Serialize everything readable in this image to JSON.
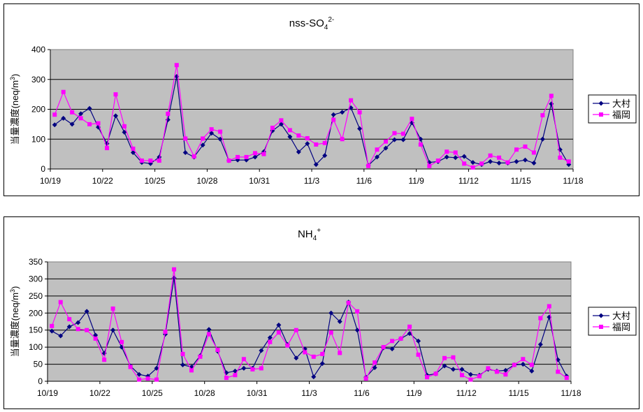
{
  "chart_data": [
    {
      "type": "line",
      "title": "nss-SO",
      "title_sub": "4",
      "title_sup": "2-",
      "ylabel": "当量濃度(neq/m",
      "ylabel_sup": "3",
      "ylabel_end": ")",
      "ylim": [
        0,
        400
      ],
      "yticks": [
        "0",
        "100",
        "200",
        "300",
        "400"
      ],
      "xtick_labels": [
        "10/19",
        "10/22",
        "10/25",
        "10/28",
        "10/31",
        "11/3",
        "11/6",
        "11/9",
        "11/12",
        "11/15",
        "11/18"
      ],
      "n_points": 60,
      "grid": true,
      "legend": "right",
      "series": [
        {
          "name": "大村",
          "color": "#000080",
          "marker": "diamond",
          "values": [
            148,
            170,
            150,
            185,
            203,
            140,
            85,
            178,
            123,
            55,
            22,
            18,
            40,
            165,
            310,
            55,
            40,
            80,
            120,
            100,
            28,
            30,
            30,
            40,
            58,
            128,
            150,
            108,
            57,
            85,
            15,
            45,
            182,
            190,
            205,
            135,
            12,
            40,
            70,
            98,
            98,
            155,
            100,
            22,
            25,
            40,
            38,
            42,
            22,
            15,
            25,
            20,
            20,
            25,
            30,
            20,
            100,
            218,
            65,
            15
          ]
        },
        {
          "name": "福岡",
          "color": "#ff00ff",
          "marker": "square",
          "values": [
            182,
            258,
            190,
            170,
            150,
            153,
            70,
            250,
            143,
            68,
            28,
            28,
            28,
            185,
            348,
            102,
            42,
            102,
            133,
            125,
            28,
            40,
            40,
            53,
            50,
            138,
            163,
            130,
            112,
            103,
            82,
            87,
            165,
            100,
            230,
            190,
            10,
            65,
            92,
            120,
            118,
            168,
            82,
            10,
            28,
            58,
            55,
            18,
            5,
            18,
            45,
            38,
            22,
            65,
            75,
            55,
            180,
            245,
            38,
            25
          ]
        }
      ]
    },
    {
      "type": "line",
      "title": "NH",
      "title_sub": "4",
      "title_sup": "+",
      "ylabel": "当量濃度(neq/m",
      "ylabel_sup": "3",
      "ylabel_end": ")",
      "ylim": [
        0,
        350
      ],
      "yticks": [
        "0",
        "50",
        "100",
        "150",
        "200",
        "250",
        "300",
        "350"
      ],
      "xtick_labels": [
        "10/19",
        "10/22",
        "10/25",
        "10/28",
        "10/31",
        "11/3",
        "11/6",
        "11/9",
        "11/12",
        "11/15",
        "11/18"
      ],
      "n_points": 60,
      "grid": true,
      "legend": "right",
      "series": [
        {
          "name": "大村",
          "color": "#000080",
          "marker": "diamond",
          "values": [
            147,
            133,
            160,
            172,
            205,
            135,
            82,
            150,
            100,
            45,
            20,
            15,
            38,
            138,
            303,
            48,
            42,
            75,
            152,
            88,
            25,
            30,
            38,
            38,
            90,
            128,
            165,
            108,
            68,
            95,
            13,
            52,
            200,
            175,
            232,
            150,
            12,
            40,
            98,
            95,
            125,
            140,
            118,
            18,
            22,
            45,
            35,
            35,
            20,
            18,
            35,
            30,
            32,
            48,
            50,
            30,
            108,
            188,
            63,
            15
          ]
        },
        {
          "name": "福岡",
          "color": "#ff00ff",
          "marker": "square",
          "values": [
            162,
            232,
            182,
            153,
            150,
            125,
            63,
            213,
            115,
            42,
            5,
            8,
            5,
            145,
            328,
            80,
            32,
            72,
            138,
            92,
            10,
            18,
            65,
            35,
            38,
            115,
            143,
            105,
            150,
            85,
            72,
            80,
            143,
            83,
            230,
            205,
            8,
            55,
            100,
            118,
            125,
            160,
            78,
            12,
            22,
            68,
            70,
            18,
            5,
            15,
            38,
            28,
            20,
            48,
            65,
            48,
            185,
            220,
            28,
            10
          ]
        }
      ]
    }
  ]
}
